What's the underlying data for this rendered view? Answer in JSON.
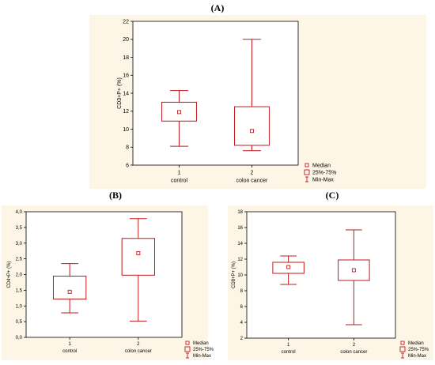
{
  "panel_labels": [
    "(A)",
    "(B)",
    "(C)"
  ],
  "colors": {
    "background": "#fdf6e6",
    "box": "#c0181b",
    "axis": "#000000"
  },
  "chart_data": [
    {
      "type": "boxplot",
      "panel": "(A)",
      "ylabel": "CD3+P+ (%)",
      "ylim": [
        6,
        22
      ],
      "yticks": [
        6,
        8,
        10,
        12,
        14,
        16,
        18,
        20,
        22
      ],
      "ytick_labels": [
        "6",
        "8",
        "10",
        "12",
        "14",
        "16",
        "18",
        "20",
        "22"
      ],
      "categories": [
        "1",
        "2"
      ],
      "group_names": [
        "control",
        "colon cancer"
      ],
      "series": [
        {
          "name": "control",
          "min": 8.1,
          "q1": 10.9,
          "median": 11.9,
          "q3": 13.0,
          "max": 14.3
        },
        {
          "name": "colon cancer",
          "min": 7.6,
          "q1": 8.2,
          "median": 9.8,
          "q3": 12.5,
          "max": 20.0
        }
      ],
      "legend": [
        "Median",
        "25%-75%",
        "Min-Max"
      ],
      "grid": false
    },
    {
      "type": "boxplot",
      "panel": "(B)",
      "ylabel": "CD4+P+ (%)",
      "ylim": [
        0,
        4
      ],
      "yticks": [
        0,
        0.5,
        1,
        1.5,
        2,
        2.5,
        3,
        3.5,
        4
      ],
      "ytick_labels": [
        "0,0",
        "0,5",
        "1,0",
        "1,5",
        "2,0",
        "2,5",
        "3,0",
        "3,5",
        "4,0"
      ],
      "categories": [
        "1",
        "2"
      ],
      "group_names": [
        "control",
        "colon cancer"
      ],
      "series": [
        {
          "name": "control",
          "min": 0.78,
          "q1": 1.22,
          "median": 1.45,
          "q3": 1.95,
          "max": 2.35
        },
        {
          "name": "colon cancer",
          "min": 0.52,
          "q1": 1.98,
          "median": 2.68,
          "q3": 3.15,
          "max": 3.78
        }
      ],
      "legend": [
        "Median",
        "25%-75%",
        "Min-Max"
      ],
      "grid": false
    },
    {
      "type": "boxplot",
      "panel": "(C)",
      "ylabel": "CD8+P+ (%)",
      "ylim": [
        2,
        18
      ],
      "yticks": [
        2,
        4,
        6,
        8,
        10,
        12,
        14,
        16,
        18
      ],
      "ytick_labels": [
        "2",
        "4",
        "6",
        "8",
        "10",
        "12",
        "14",
        "16",
        "18"
      ],
      "categories": [
        "1",
        "2"
      ],
      "group_names": [
        "control",
        "colon cancer"
      ],
      "series": [
        {
          "name": "control",
          "min": 8.8,
          "q1": 10.2,
          "median": 11.0,
          "q3": 11.6,
          "max": 12.4
        },
        {
          "name": "colon cancer",
          "min": 3.7,
          "q1": 9.3,
          "median": 10.6,
          "q3": 11.9,
          "max": 15.7
        }
      ],
      "legend": [
        "Median",
        "25%-75%",
        "Min-Max"
      ],
      "grid": false
    }
  ]
}
